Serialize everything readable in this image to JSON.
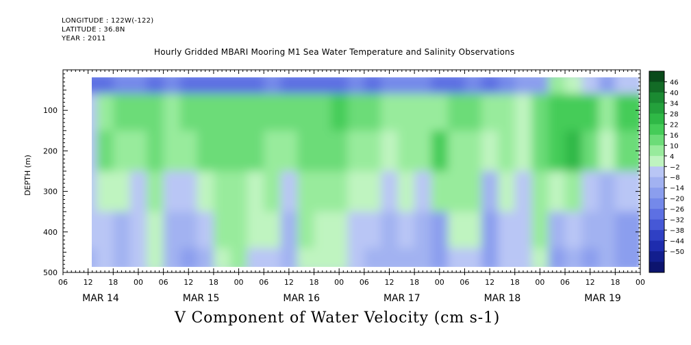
{
  "header": {
    "longitude": "LONGITUDE : 122W(-122)",
    "latitude": "LATITUDE : 36.8N",
    "year": "YEAR : 2011"
  },
  "chart_data": {
    "type": "heatmap",
    "title": "Hourly Gridded MBARI Mooring M1 Sea Water Temperature and Salinity Observations",
    "variable_label": "V Component of Water Velocity (cm s-1)",
    "ylabel": "DEPTH (m)",
    "y_range": [
      0,
      500
    ],
    "y_inverted": true,
    "y_ticks": [
      100,
      200,
      300,
      400,
      500
    ],
    "x_range_hours": [
      0,
      138
    ],
    "data_x_range_hours": [
      6,
      137
    ],
    "data_depth_range": [
      18,
      485
    ],
    "x_ticks_hours": [
      0,
      6,
      12,
      18,
      24,
      30,
      36,
      42,
      48,
      54,
      60,
      66,
      72,
      78,
      84,
      90,
      96,
      102,
      108,
      114,
      120,
      126,
      132,
      138
    ],
    "x_tick_labels": [
      "06",
      "12",
      "18",
      "00",
      "06",
      "12",
      "18",
      "00",
      "06",
      "12",
      "18",
      "00",
      "06",
      "12",
      "18",
      "00",
      "06",
      "12",
      "18",
      "00",
      "06",
      "12",
      "18",
      "00"
    ],
    "day_labels": [
      {
        "label": "MAR 14",
        "hour": 9
      },
      {
        "label": "MAR 15",
        "hour": 33
      },
      {
        "label": "MAR 16",
        "hour": 57
      },
      {
        "label": "MAR 17",
        "hour": 81
      },
      {
        "label": "MAR 18",
        "hour": 105
      },
      {
        "label": "MAR 19",
        "hour": 129
      }
    ],
    "colorbar_levels": [
      46,
      40,
      34,
      28,
      22,
      16,
      10,
      4,
      -2,
      -8,
      -14,
      -20,
      -26,
      -32,
      -38,
      -44,
      -50
    ],
    "colorbar_colors": [
      "#0a4a1a",
      "#136b26",
      "#1b8a32",
      "#24a13c",
      "#2fb846",
      "#45cc58",
      "#6cdc78",
      "#98eb9c",
      "#bff4c0",
      "#b9c6f5",
      "#a2b2f1",
      "#8b9eee",
      "#7489ea",
      "#5d70e3",
      "#4658d6",
      "#2f40c4",
      "#1e2cae",
      "#121e8e",
      "#0c146e"
    ],
    "cells": [
      {
        "t": 6,
        "d": 18,
        "v": -30
      },
      {
        "t": 6,
        "d": 100,
        "v": -4
      },
      {
        "t": 6,
        "d": 200,
        "v": -6
      },
      {
        "t": 6,
        "d": 300,
        "v": -8
      },
      {
        "t": 6,
        "d": 400,
        "v": -6
      },
      {
        "t": 6,
        "d": 480,
        "v": -10
      },
      {
        "t": 10,
        "d": 18,
        "v": -28
      },
      {
        "t": 10,
        "d": 100,
        "v": 8
      },
      {
        "t": 10,
        "d": 200,
        "v": 10
      },
      {
        "t": 10,
        "d": 300,
        "v": 2
      },
      {
        "t": 10,
        "d": 400,
        "v": -4
      },
      {
        "t": 10,
        "d": 480,
        "v": -8
      },
      {
        "t": 14,
        "d": 18,
        "v": -26
      },
      {
        "t": 14,
        "d": 100,
        "v": 12
      },
      {
        "t": 14,
        "d": 200,
        "v": 8
      },
      {
        "t": 14,
        "d": 300,
        "v": -2
      },
      {
        "t": 14,
        "d": 400,
        "v": -10
      },
      {
        "t": 14,
        "d": 480,
        "v": -12
      },
      {
        "t": 18,
        "d": 18,
        "v": -24
      },
      {
        "t": 18,
        "d": 100,
        "v": 10
      },
      {
        "t": 18,
        "d": 200,
        "v": 6
      },
      {
        "t": 18,
        "d": 300,
        "v": -6
      },
      {
        "t": 18,
        "d": 400,
        "v": -8
      },
      {
        "t": 18,
        "d": 480,
        "v": -6
      },
      {
        "t": 22,
        "d": 18,
        "v": -28
      },
      {
        "t": 22,
        "d": 100,
        "v": 14
      },
      {
        "t": 22,
        "d": 200,
        "v": 12
      },
      {
        "t": 22,
        "d": 300,
        "v": 4
      },
      {
        "t": 22,
        "d": 400,
        "v": 2
      },
      {
        "t": 22,
        "d": 480,
        "v": 0
      },
      {
        "t": 26,
        "d": 18,
        "v": -26
      },
      {
        "t": 26,
        "d": 100,
        "v": 8
      },
      {
        "t": 26,
        "d": 200,
        "v": 4
      },
      {
        "t": 26,
        "d": 300,
        "v": -8
      },
      {
        "t": 26,
        "d": 400,
        "v": -12
      },
      {
        "t": 26,
        "d": 480,
        "v": -14
      },
      {
        "t": 30,
        "d": 18,
        "v": -30
      },
      {
        "t": 30,
        "d": 100,
        "v": 10
      },
      {
        "t": 30,
        "d": 200,
        "v": 8
      },
      {
        "t": 30,
        "d": 300,
        "v": -4
      },
      {
        "t": 30,
        "d": 400,
        "v": -14
      },
      {
        "t": 30,
        "d": 480,
        "v": -16
      },
      {
        "t": 34,
        "d": 18,
        "v": -28
      },
      {
        "t": 34,
        "d": 100,
        "v": 12
      },
      {
        "t": 34,
        "d": 200,
        "v": 10
      },
      {
        "t": 34,
        "d": 300,
        "v": 2
      },
      {
        "t": 34,
        "d": 400,
        "v": -6
      },
      {
        "t": 34,
        "d": 480,
        "v": -10
      },
      {
        "t": 38,
        "d": 18,
        "v": -30
      },
      {
        "t": 38,
        "d": 100,
        "v": 14
      },
      {
        "t": 38,
        "d": 200,
        "v": 12
      },
      {
        "t": 38,
        "d": 300,
        "v": 6
      },
      {
        "t": 38,
        "d": 400,
        "v": 4
      },
      {
        "t": 38,
        "d": 480,
        "v": 2
      },
      {
        "t": 42,
        "d": 18,
        "v": -28
      },
      {
        "t": 42,
        "d": 100,
        "v": 10
      },
      {
        "t": 42,
        "d": 200,
        "v": 12
      },
      {
        "t": 42,
        "d": 300,
        "v": 8
      },
      {
        "t": 42,
        "d": 400,
        "v": 6
      },
      {
        "t": 42,
        "d": 480,
        "v": 4
      },
      {
        "t": 46,
        "d": 18,
        "v": -30
      },
      {
        "t": 46,
        "d": 100,
        "v": 14
      },
      {
        "t": 46,
        "d": 200,
        "v": 10
      },
      {
        "t": 46,
        "d": 300,
        "v": 2
      },
      {
        "t": 46,
        "d": 400,
        "v": 0
      },
      {
        "t": 46,
        "d": 480,
        "v": -4
      },
      {
        "t": 50,
        "d": 18,
        "v": -26
      },
      {
        "t": 50,
        "d": 100,
        "v": 12
      },
      {
        "t": 50,
        "d": 200,
        "v": 8
      },
      {
        "t": 50,
        "d": 300,
        "v": 4
      },
      {
        "t": 50,
        "d": 400,
        "v": -2
      },
      {
        "t": 50,
        "d": 480,
        "v": -6
      },
      {
        "t": 54,
        "d": 18,
        "v": -28
      },
      {
        "t": 54,
        "d": 100,
        "v": 10
      },
      {
        "t": 54,
        "d": 200,
        "v": 6
      },
      {
        "t": 54,
        "d": 300,
        "v": -6
      },
      {
        "t": 54,
        "d": 400,
        "v": -10
      },
      {
        "t": 54,
        "d": 480,
        "v": -12
      },
      {
        "t": 58,
        "d": 18,
        "v": -30
      },
      {
        "t": 58,
        "d": 100,
        "v": 14
      },
      {
        "t": 58,
        "d": 200,
        "v": 12
      },
      {
        "t": 58,
        "d": 300,
        "v": 6
      },
      {
        "t": 58,
        "d": 400,
        "v": 4
      },
      {
        "t": 58,
        "d": 480,
        "v": 2
      },
      {
        "t": 62,
        "d": 18,
        "v": -28
      },
      {
        "t": 62,
        "d": 100,
        "v": 12
      },
      {
        "t": 62,
        "d": 200,
        "v": 10
      },
      {
        "t": 62,
        "d": 300,
        "v": 4
      },
      {
        "t": 62,
        "d": 400,
        "v": 2
      },
      {
        "t": 62,
        "d": 480,
        "v": 0
      },
      {
        "t": 66,
        "d": 18,
        "v": -30
      },
      {
        "t": 66,
        "d": 100,
        "v": 16
      },
      {
        "t": 66,
        "d": 200,
        "v": 14
      },
      {
        "t": 66,
        "d": 300,
        "v": 8
      },
      {
        "t": 66,
        "d": 400,
        "v": 2
      },
      {
        "t": 66,
        "d": 480,
        "v": -2
      },
      {
        "t": 70,
        "d": 18,
        "v": -26
      },
      {
        "t": 70,
        "d": 100,
        "v": 12
      },
      {
        "t": 70,
        "d": 200,
        "v": 8
      },
      {
        "t": 70,
        "d": 300,
        "v": 2
      },
      {
        "t": 70,
        "d": 400,
        "v": -4
      },
      {
        "t": 70,
        "d": 480,
        "v": -8
      },
      {
        "t": 74,
        "d": 18,
        "v": -28
      },
      {
        "t": 74,
        "d": 100,
        "v": 10
      },
      {
        "t": 74,
        "d": 200,
        "v": 6
      },
      {
        "t": 74,
        "d": 300,
        "v": 0
      },
      {
        "t": 74,
        "d": 400,
        "v": -6
      },
      {
        "t": 74,
        "d": 480,
        "v": -10
      },
      {
        "t": 78,
        "d": 18,
        "v": -24
      },
      {
        "t": 78,
        "d": 100,
        "v": 4
      },
      {
        "t": 78,
        "d": 200,
        "v": 2
      },
      {
        "t": 78,
        "d": 300,
        "v": -8
      },
      {
        "t": 78,
        "d": 400,
        "v": -12
      },
      {
        "t": 78,
        "d": 480,
        "v": -14
      },
      {
        "t": 82,
        "d": 18,
        "v": -26
      },
      {
        "t": 82,
        "d": 100,
        "v": 8
      },
      {
        "t": 82,
        "d": 200,
        "v": 6
      },
      {
        "t": 82,
        "d": 300,
        "v": 2
      },
      {
        "t": 82,
        "d": 400,
        "v": -8
      },
      {
        "t": 82,
        "d": 480,
        "v": -12
      },
      {
        "t": 86,
        "d": 18,
        "v": -22
      },
      {
        "t": 86,
        "d": 100,
        "v": 6
      },
      {
        "t": 86,
        "d": 200,
        "v": 4
      },
      {
        "t": 86,
        "d": 300,
        "v": -4
      },
      {
        "t": 86,
        "d": 400,
        "v": -10
      },
      {
        "t": 86,
        "d": 480,
        "v": -12
      },
      {
        "t": 90,
        "d": 18,
        "v": -28
      },
      {
        "t": 90,
        "d": 100,
        "v": 8
      },
      {
        "t": 90,
        "d": 200,
        "v": 16
      },
      {
        "t": 90,
        "d": 300,
        "v": 4
      },
      {
        "t": 90,
        "d": 400,
        "v": -18
      },
      {
        "t": 90,
        "d": 480,
        "v": -20
      },
      {
        "t": 94,
        "d": 18,
        "v": -30
      },
      {
        "t": 94,
        "d": 100,
        "v": 12
      },
      {
        "t": 94,
        "d": 200,
        "v": 8
      },
      {
        "t": 94,
        "d": 300,
        "v": 6
      },
      {
        "t": 94,
        "d": 400,
        "v": 2
      },
      {
        "t": 94,
        "d": 480,
        "v": -4
      },
      {
        "t": 98,
        "d": 18,
        "v": -24
      },
      {
        "t": 98,
        "d": 100,
        "v": 10
      },
      {
        "t": 98,
        "d": 200,
        "v": 8
      },
      {
        "t": 98,
        "d": 300,
        "v": 4
      },
      {
        "t": 98,
        "d": 400,
        "v": 0
      },
      {
        "t": 98,
        "d": 480,
        "v": -8
      },
      {
        "t": 102,
        "d": 18,
        "v": -28
      },
      {
        "t": 102,
        "d": 100,
        "v": 6
      },
      {
        "t": 102,
        "d": 200,
        "v": 2
      },
      {
        "t": 102,
        "d": 300,
        "v": -10
      },
      {
        "t": 102,
        "d": 400,
        "v": -16
      },
      {
        "t": 102,
        "d": 480,
        "v": -18
      },
      {
        "t": 106,
        "d": 18,
        "v": -26
      },
      {
        "t": 106,
        "d": 100,
        "v": 8
      },
      {
        "t": 106,
        "d": 200,
        "v": 6
      },
      {
        "t": 106,
        "d": 300,
        "v": 0
      },
      {
        "t": 106,
        "d": 400,
        "v": -4
      },
      {
        "t": 106,
        "d": 480,
        "v": -6
      },
      {
        "t": 110,
        "d": 18,
        "v": -20
      },
      {
        "t": 110,
        "d": 100,
        "v": 2
      },
      {
        "t": 110,
        "d": 200,
        "v": 0
      },
      {
        "t": 110,
        "d": 300,
        "v": -4
      },
      {
        "t": 110,
        "d": 400,
        "v": -8
      },
      {
        "t": 110,
        "d": 480,
        "v": -8
      },
      {
        "t": 114,
        "d": 18,
        "v": -18
      },
      {
        "t": 114,
        "d": 100,
        "v": 14
      },
      {
        "t": 114,
        "d": 200,
        "v": 10
      },
      {
        "t": 114,
        "d": 300,
        "v": 6
      },
      {
        "t": 114,
        "d": 400,
        "v": 4
      },
      {
        "t": 114,
        "d": 480,
        "v": 2
      },
      {
        "t": 118,
        "d": 18,
        "v": 4
      },
      {
        "t": 118,
        "d": 100,
        "v": 18
      },
      {
        "t": 118,
        "d": 200,
        "v": 16
      },
      {
        "t": 118,
        "d": 300,
        "v": 2
      },
      {
        "t": 118,
        "d": 400,
        "v": -14
      },
      {
        "t": 118,
        "d": 480,
        "v": -18
      },
      {
        "t": 122,
        "d": 18,
        "v": 2
      },
      {
        "t": 122,
        "d": 100,
        "v": 20
      },
      {
        "t": 122,
        "d": 200,
        "v": 22
      },
      {
        "t": 122,
        "d": 300,
        "v": 8
      },
      {
        "t": 122,
        "d": 400,
        "v": -6
      },
      {
        "t": 122,
        "d": 480,
        "v": -10
      },
      {
        "t": 126,
        "d": 18,
        "v": -6
      },
      {
        "t": 126,
        "d": 100,
        "v": 16
      },
      {
        "t": 126,
        "d": 200,
        "v": 12
      },
      {
        "t": 126,
        "d": 300,
        "v": -6
      },
      {
        "t": 126,
        "d": 400,
        "v": -14
      },
      {
        "t": 126,
        "d": 480,
        "v": -16
      },
      {
        "t": 130,
        "d": 18,
        "v": -18
      },
      {
        "t": 130,
        "d": 100,
        "v": 4
      },
      {
        "t": 130,
        "d": 200,
        "v": 2
      },
      {
        "t": 130,
        "d": 300,
        "v": -10
      },
      {
        "t": 130,
        "d": 400,
        "v": -12
      },
      {
        "t": 130,
        "d": 480,
        "v": -12
      },
      {
        "t": 134,
        "d": 18,
        "v": -8
      },
      {
        "t": 134,
        "d": 100,
        "v": 18
      },
      {
        "t": 134,
        "d": 200,
        "v": 14
      },
      {
        "t": 134,
        "d": 300,
        "v": -4
      },
      {
        "t": 134,
        "d": 400,
        "v": -16
      },
      {
        "t": 134,
        "d": 480,
        "v": -18
      }
    ]
  }
}
